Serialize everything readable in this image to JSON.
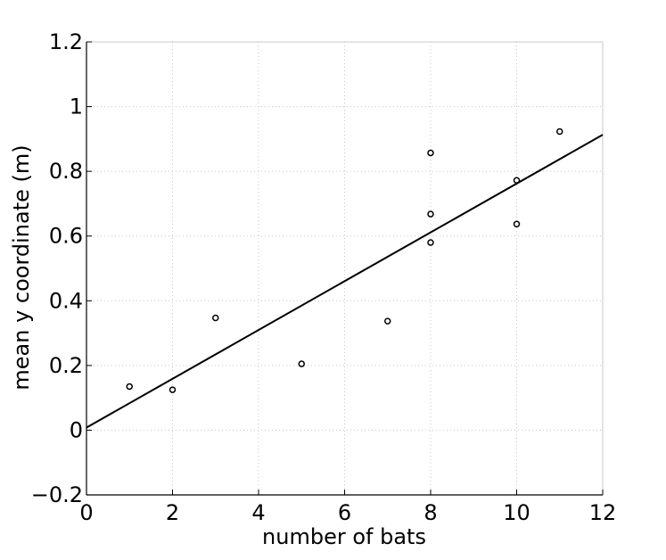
{
  "chart_data": {
    "type": "scatter",
    "title": "",
    "xlabel": "number of bats",
    "ylabel": "mean y coordinate (m)",
    "xlim": [
      0,
      12
    ],
    "ylim": [
      -0.2,
      1.2
    ],
    "x_ticks": [
      0,
      2,
      4,
      6,
      8,
      10,
      12
    ],
    "y_ticks": [
      -0.2,
      0,
      0.2,
      0.4,
      0.6,
      0.8,
      1,
      1.2
    ],
    "x_tick_labels": [
      "0",
      "2",
      "4",
      "6",
      "8",
      "10",
      "12"
    ],
    "y_tick_labels": [
      "−0.2",
      "0",
      "0.2",
      "0.4",
      "0.6",
      "0.8",
      "1",
      "1.2"
    ],
    "grid": true,
    "legend": "none",
    "points": [
      {
        "x": 1,
        "y": 0.135
      },
      {
        "x": 2,
        "y": 0.125
      },
      {
        "x": 3,
        "y": 0.347
      },
      {
        "x": 5,
        "y": 0.205
      },
      {
        "x": 7,
        "y": 0.337
      },
      {
        "x": 8,
        "y": 0.857
      },
      {
        "x": 8,
        "y": 0.668
      },
      {
        "x": 8,
        "y": 0.58
      },
      {
        "x": 10,
        "y": 0.772
      },
      {
        "x": 10,
        "y": 0.637
      },
      {
        "x": 11,
        "y": 0.923
      }
    ],
    "fit_line": {
      "x": [
        0,
        12
      ],
      "y": [
        0.008,
        0.913
      ]
    },
    "colors": {
      "marker": "#000000",
      "line": "#000000",
      "grid": "#c8c8c8",
      "axes": "#000000"
    }
  }
}
